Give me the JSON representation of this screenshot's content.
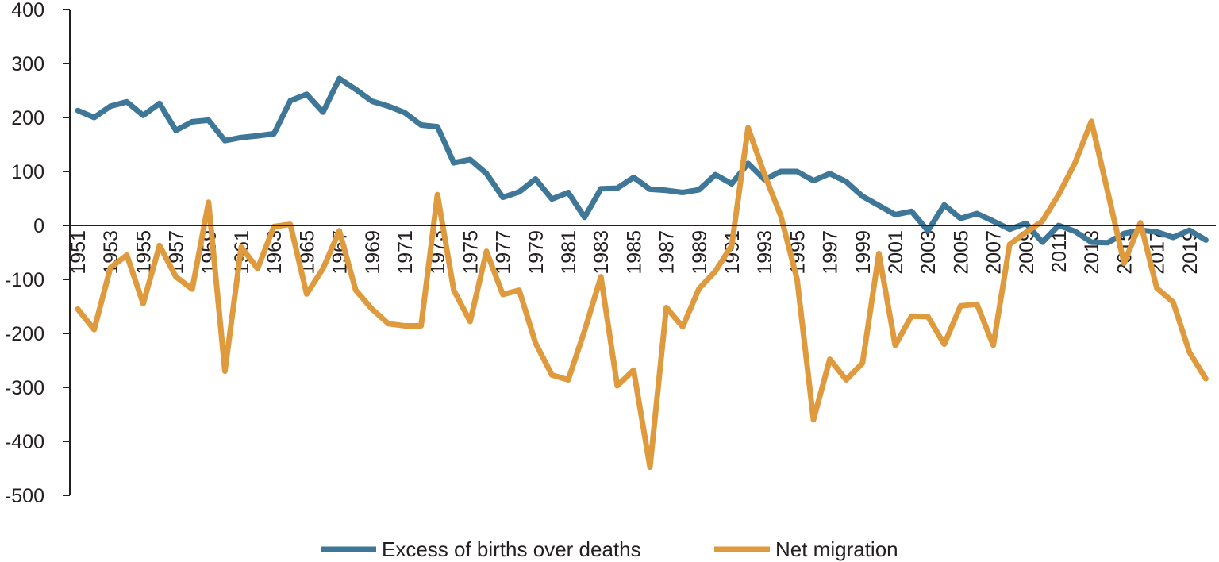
{
  "chart_data": {
    "type": "line",
    "title": "",
    "xlabel": "",
    "ylabel": "",
    "ylim": [
      -500,
      400
    ],
    "yticks": [
      400,
      300,
      200,
      100,
      0,
      -100,
      -200,
      -300,
      -400,
      -500
    ],
    "ytick_labels": [
      "400",
      "300",
      "200",
      "100",
      "0",
      "-100",
      "-200",
      "-300",
      "-400",
      "-500"
    ],
    "x": [
      1951,
      1952,
      1953,
      1954,
      1955,
      1956,
      1957,
      1958,
      1959,
      1960,
      1961,
      1962,
      1963,
      1964,
      1965,
      1966,
      1967,
      1968,
      1969,
      1970,
      1971,
      1972,
      1973,
      1974,
      1975,
      1976,
      1977,
      1978,
      1979,
      1980,
      1981,
      1982,
      1983,
      1984,
      1985,
      1986,
      1987,
      1988,
      1989,
      1990,
      1991,
      1992,
      1993,
      1994,
      1995,
      1996,
      1997,
      1998,
      1999,
      2000,
      2001,
      2002,
      2003,
      2004,
      2005,
      2006,
      2007,
      2008,
      2009,
      2010,
      2011,
      2012,
      2013,
      2014,
      2015,
      2016,
      2017,
      2018,
      2019,
      2020
    ],
    "xtick_labels": [
      "1951",
      "1953",
      "1955",
      "1957",
      "1959",
      "1961",
      "1963",
      "1965",
      "1967",
      "1969",
      "1971",
      "1973",
      "1975",
      "1977",
      "1979",
      "1981",
      "1983",
      "1985",
      "1987",
      "1989",
      "1991",
      "1993",
      "1995",
      "1997",
      "1999",
      "2001",
      "2003",
      "2005",
      "2007",
      "2009",
      "2011",
      "2013",
      "2015",
      "2017",
      "2019"
    ],
    "grid": false,
    "legend_position": "bottom",
    "series": [
      {
        "name": "Excess of births over deaths",
        "color": "#3e7797",
        "values": [
          213,
          200,
          221,
          229,
          204,
          226,
          176,
          192,
          195,
          157,
          163,
          166,
          170,
          231,
          243,
          210,
          272,
          252,
          230,
          221,
          209,
          186,
          183,
          116,
          122,
          96,
          52,
          62,
          86,
          49,
          61,
          15,
          68,
          69,
          89,
          67,
          65,
          61,
          66,
          94,
          77,
          115,
          85,
          100,
          100,
          83,
          96,
          81,
          54,
          37,
          20,
          26,
          -10,
          38,
          13,
          22,
          8,
          -7,
          4,
          -31,
          0,
          -11,
          -31,
          -32,
          -15,
          -9,
          -12,
          -22,
          -9,
          -27
        ]
      },
      {
        "name": "Net migration",
        "color": "#df9a3e",
        "values": [
          -155,
          -193,
          -78,
          -55,
          -145,
          -37,
          -95,
          -118,
          43,
          -270,
          -40,
          -80,
          -2,
          2,
          -127,
          -80,
          -10,
          -120,
          -155,
          -182,
          -186,
          -186,
          57,
          -120,
          -178,
          -48,
          -128,
          -120,
          -218,
          -277,
          -286,
          -195,
          -95,
          -297,
          -268,
          -448,
          -152,
          -188,
          -117,
          -85,
          -37,
          181,
          95,
          18,
          -100,
          -360,
          -248,
          -286,
          -255,
          -52,
          -222,
          -168,
          -169,
          -220,
          -149,
          -146,
          -222,
          -35,
          -13,
          8,
          57,
          116,
          193,
          62,
          -70,
          5,
          -116,
          -142,
          -235,
          -284
        ]
      }
    ]
  }
}
